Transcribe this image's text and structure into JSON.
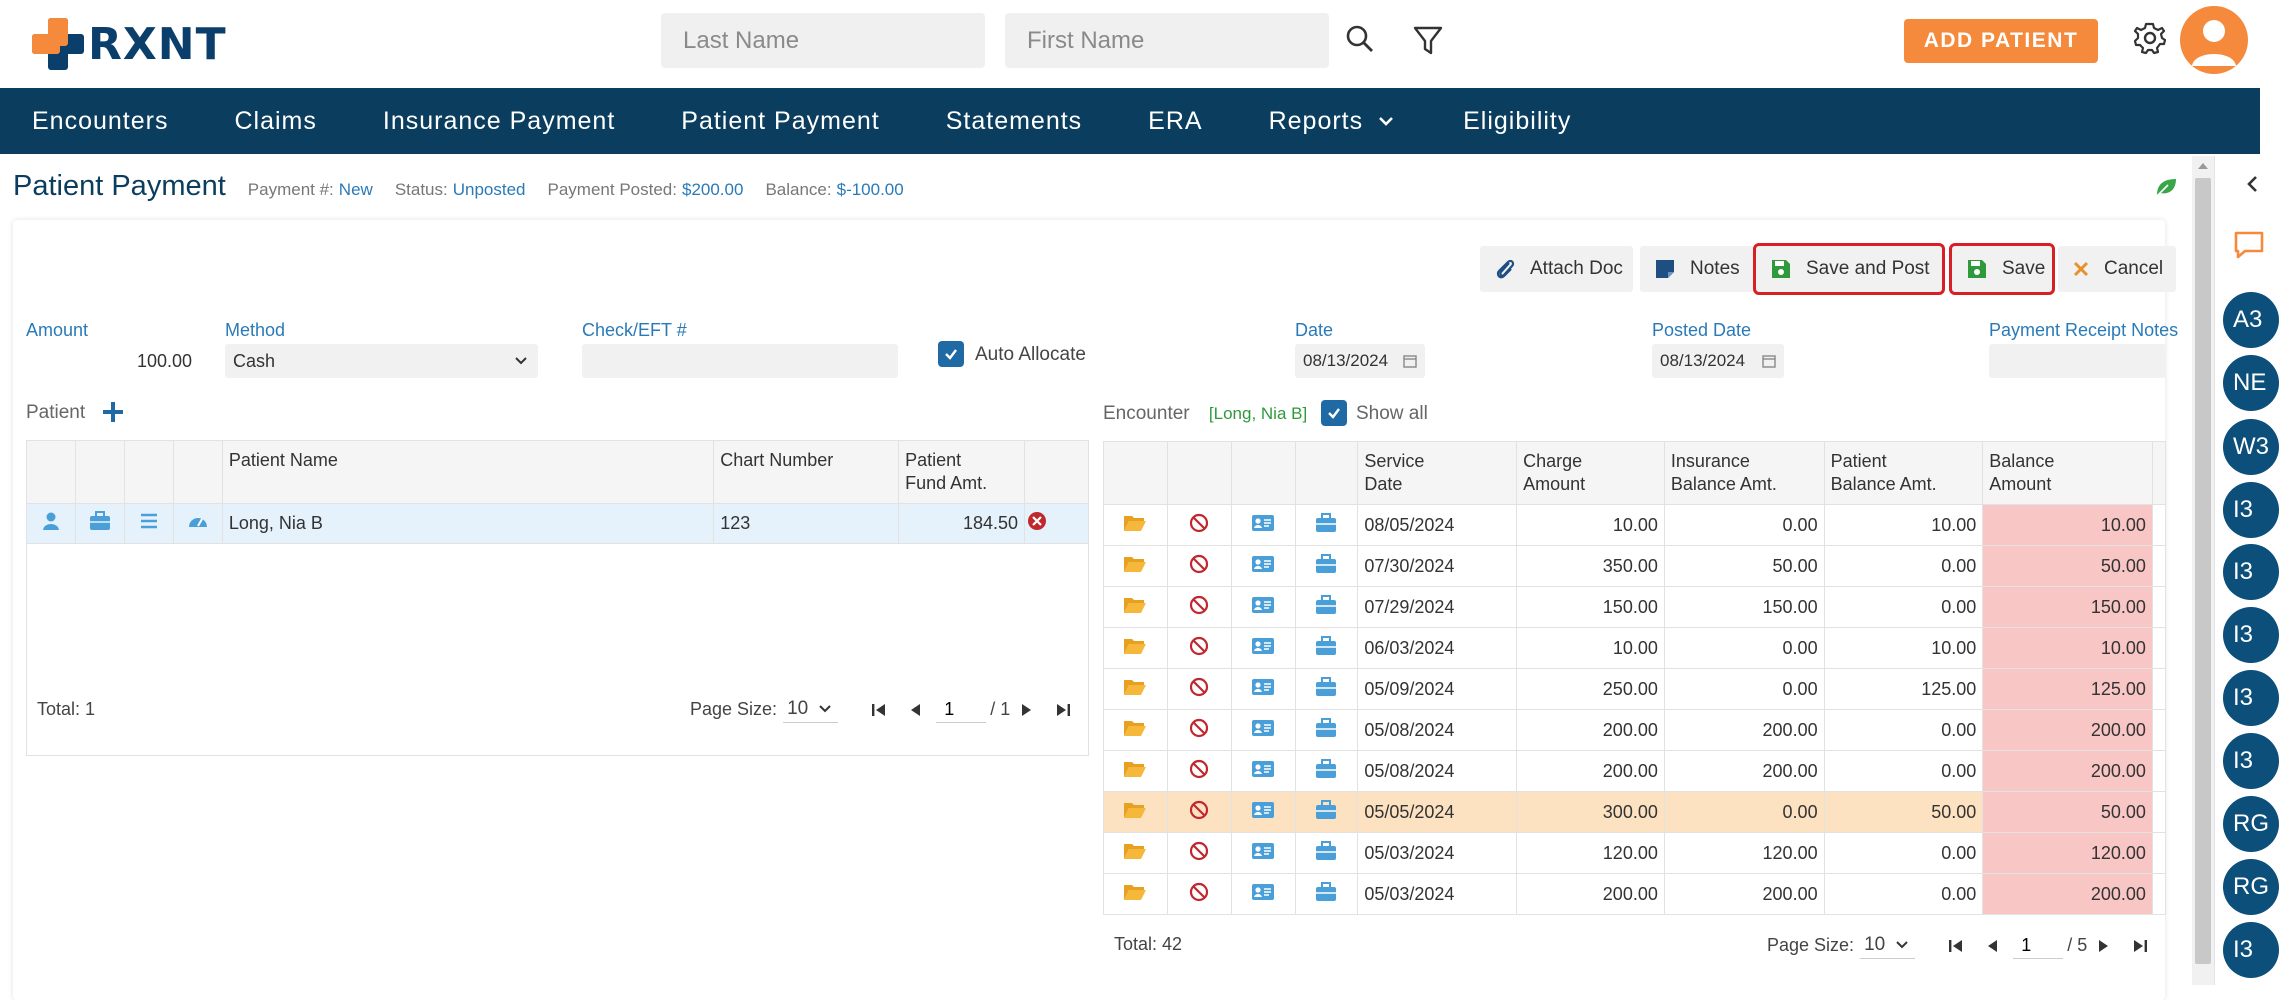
{
  "header": {
    "logo_text": "RXNT",
    "last_name_placeholder": "Last Name",
    "first_name_placeholder": "First Name",
    "add_patient_label": "ADD PATIENT",
    "icons": [
      "search-icon",
      "filter-icon",
      "gear-icon",
      "avatar"
    ]
  },
  "nav": {
    "items": [
      "Encounters",
      "Claims",
      "Insurance Payment",
      "Patient Payment",
      "Statements",
      "ERA",
      "Reports",
      "Eligibility"
    ]
  },
  "title": {
    "page_title": "Patient Payment",
    "payment_no_label": "Payment #:",
    "payment_no_value": "New",
    "status_label": "Status:",
    "status_value": "Unposted",
    "posted_label": "Payment Posted:",
    "posted_value": "$200.00",
    "balance_label": "Balance:",
    "balance_value": "$-100.00"
  },
  "toolbar": {
    "attach_doc": "Attach Doc",
    "notes": "Notes",
    "save_and_post": "Save and Post",
    "save": "Save",
    "cancel": "Cancel"
  },
  "form": {
    "amount_label": "Amount",
    "amount_value": "100.00",
    "method_label": "Method",
    "method_value": "Cash",
    "check_label": "Check/EFT #",
    "check_value": "",
    "auto_allocate_label": "Auto Allocate",
    "date_label": "Date",
    "date_value": "08/13/2024",
    "posted_date_label": "Posted Date",
    "posted_date_value": "08/13/2024",
    "receipt_notes_label": "Payment Receipt Notes",
    "receipt_notes_value": ""
  },
  "patient": {
    "section_label": "Patient",
    "columns": [
      "Patient Name",
      "Chart Number",
      "Patient Fund Amt."
    ],
    "col_fund_line1": "Patient",
    "col_fund_line2": "Fund Amt.",
    "rows": [
      {
        "name": "Long, Nia B",
        "chart": "123",
        "fund": "184.50"
      }
    ],
    "total": "Total: 1",
    "page_size_label": "Page Size:",
    "page_size": "10",
    "page": "1",
    "page_of": "/ 1"
  },
  "encounter": {
    "section_label": "Encounter",
    "patient_tag": "[Long, Nia B]",
    "show_all_label": "Show all",
    "col_service_1": "Service",
    "col_service_2": "Date",
    "col_charge_1": "Charge",
    "col_charge_2": "Amount",
    "col_ins_1": "Insurance",
    "col_ins_2": "Balance Amt.",
    "col_pat_1": "Patient",
    "col_pat_2": "Balance Amt.",
    "col_bal_1": "Balance",
    "col_bal_2": "Amount",
    "rows": [
      {
        "date": "08/05/2024",
        "charge": "10.00",
        "ins": "0.00",
        "pat": "10.00",
        "bal": "10.00"
      },
      {
        "date": "07/30/2024",
        "charge": "350.00",
        "ins": "50.00",
        "pat": "0.00",
        "bal": "50.00"
      },
      {
        "date": "07/29/2024",
        "charge": "150.00",
        "ins": "150.00",
        "pat": "0.00",
        "bal": "150.00"
      },
      {
        "date": "06/03/2024",
        "charge": "10.00",
        "ins": "0.00",
        "pat": "10.00",
        "bal": "10.00"
      },
      {
        "date": "05/09/2024",
        "charge": "250.00",
        "ins": "0.00",
        "pat": "125.00",
        "bal": "125.00"
      },
      {
        "date": "05/08/2024",
        "charge": "200.00",
        "ins": "200.00",
        "pat": "0.00",
        "bal": "200.00"
      },
      {
        "date": "05/08/2024",
        "charge": "200.00",
        "ins": "200.00",
        "pat": "0.00",
        "bal": "200.00"
      },
      {
        "date": "05/05/2024",
        "charge": "300.00",
        "ins": "0.00",
        "pat": "50.00",
        "bal": "50.00"
      },
      {
        "date": "05/03/2024",
        "charge": "120.00",
        "ins": "120.00",
        "pat": "0.00",
        "bal": "120.00"
      },
      {
        "date": "05/03/2024",
        "charge": "200.00",
        "ins": "200.00",
        "pat": "0.00",
        "bal": "200.00"
      }
    ],
    "selected_row": 7,
    "total": "Total: 42",
    "page_size_label": "Page Size:",
    "page_size": "10",
    "page": "1",
    "page_of": "/ 5"
  },
  "side_panel": {
    "bubbles": [
      "A3",
      "NE",
      "W3",
      "I3",
      "I3",
      "I3",
      "I3",
      "I3",
      "RG",
      "RG",
      "I3"
    ]
  },
  "colors": {
    "navy": "#0b3d5e",
    "accent_orange": "#f68a3c",
    "link_blue": "#2a7ab8",
    "balance_red_bg": "#f9c6c6",
    "selected_row_bg": "#fde2c1",
    "highlight_red": "#d81f26"
  }
}
